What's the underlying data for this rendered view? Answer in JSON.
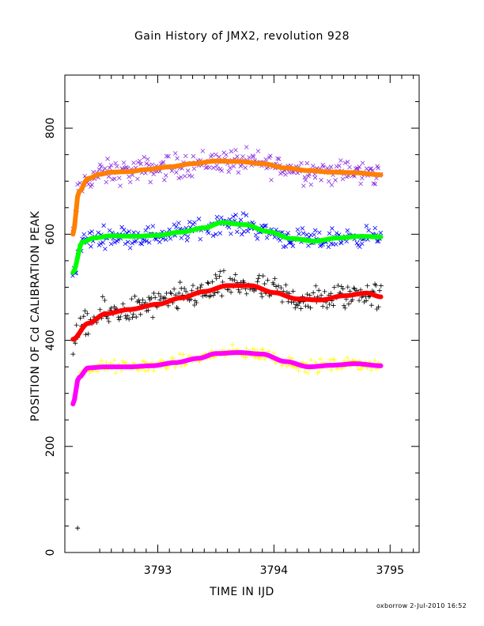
{
  "page": {
    "title": "Gain History of JMX2, revolution 928",
    "xlabel": "TIME IN IJD",
    "ylabel": "POSITION OF Cd CALIBRATION PEAK",
    "footer": "oxborrow  2-Jul-2010 16:52"
  },
  "chart_data": {
    "type": "scatter",
    "title": "Gain History of JMX2, revolution 928",
    "xlabel": "TIME IN IJD",
    "ylabel": "POSITION OF Cd CALIBRATION PEAK",
    "xlim": [
      3792.2,
      3795.25
    ],
    "ylim": [
      0,
      900
    ],
    "xticks": [
      3793,
      3794,
      3795
    ],
    "yticks": [
      0,
      200,
      400,
      600,
      800
    ],
    "grid": false,
    "series": [
      {
        "marker": "x",
        "color": "#8a2be2",
        "scatter": 18,
        "fit_color": "#ff7f00",
        "x": [
          3792.27,
          3792.32,
          3792.4,
          3792.5,
          3792.6,
          3792.75,
          3792.9,
          3793.1,
          3793.3,
          3793.5,
          3793.7,
          3793.9,
          3794.1,
          3794.3,
          3794.5,
          3794.7,
          3794.92
        ],
        "y": [
          600,
          680,
          705,
          713,
          717,
          718,
          722,
          727,
          733,
          738,
          737,
          733,
          725,
          720,
          717,
          716,
          712
        ]
      },
      {
        "marker": "x",
        "color": "#0000ff",
        "scatter": 14,
        "fit_color": "#00ff00",
        "x": [
          3792.27,
          3792.35,
          3792.45,
          3792.6,
          3792.8,
          3793.0,
          3793.2,
          3793.4,
          3793.55,
          3793.75,
          3793.95,
          3794.15,
          3794.35,
          3794.55,
          3794.75,
          3794.92
        ],
        "y": [
          528,
          585,
          593,
          597,
          596,
          598,
          604,
          612,
          622,
          618,
          605,
          592,
          587,
          593,
          596,
          595
        ]
      },
      {
        "marker": "+",
        "color": "#000000",
        "scatter": 20,
        "fit_color": "#ff0000",
        "x": [
          3792.27,
          3792.4,
          3792.55,
          3792.75,
          3793.0,
          3793.2,
          3793.4,
          3793.6,
          3793.8,
          3794.0,
          3794.2,
          3794.4,
          3794.6,
          3794.8,
          3794.92
        ],
        "y": [
          402,
          432,
          450,
          458,
          468,
          480,
          492,
          503,
          503,
          490,
          478,
          476,
          484,
          489,
          482
        ]
      },
      {
        "marker": "+",
        "color": "#ffff00",
        "scatter": 9,
        "fit_color": "#ff00ff",
        "x": [
          3792.27,
          3792.32,
          3792.4,
          3792.55,
          3792.75,
          3792.95,
          3793.15,
          3793.35,
          3793.5,
          3793.7,
          3793.9,
          3794.1,
          3794.3,
          3794.5,
          3794.7,
          3794.92
        ],
        "y": [
          280,
          330,
          348,
          350,
          350,
          352,
          358,
          366,
          375,
          377,
          374,
          360,
          350,
          353,
          356,
          352
        ]
      }
    ],
    "outliers": [
      {
        "x": 3792.31,
        "y": 46,
        "marker": "+",
        "color": "#000000"
      }
    ]
  }
}
